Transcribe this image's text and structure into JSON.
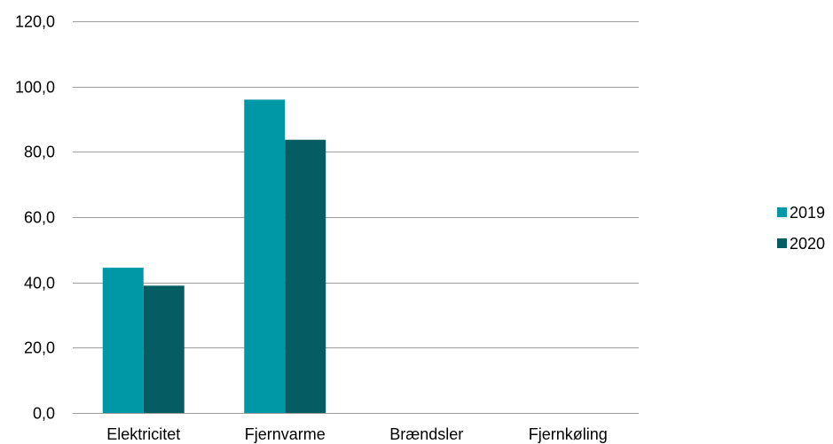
{
  "chart_data": {
    "type": "bar",
    "categories": [
      "Elektricitet",
      "Fjernvarme",
      "Brændsler",
      "Fjernkøling"
    ],
    "series": [
      {
        "name": "2019",
        "values": [
          44.5,
          96.0,
          0,
          0
        ],
        "color": "#0097a7"
      },
      {
        "name": "2020",
        "values": [
          39.0,
          83.7,
          0,
          0
        ],
        "color": "#065c63"
      }
    ],
    "ylim": [
      0,
      120
    ],
    "yticks": [
      "0,0",
      "20,0",
      "40,0",
      "60,0",
      "80,0",
      "100,0",
      "120,0"
    ],
    "ytick_values": [
      0,
      20,
      40,
      60,
      80,
      100,
      120
    ],
    "grid": true,
    "legend_position": "right",
    "title": "",
    "xlabel": "",
    "ylabel": ""
  }
}
